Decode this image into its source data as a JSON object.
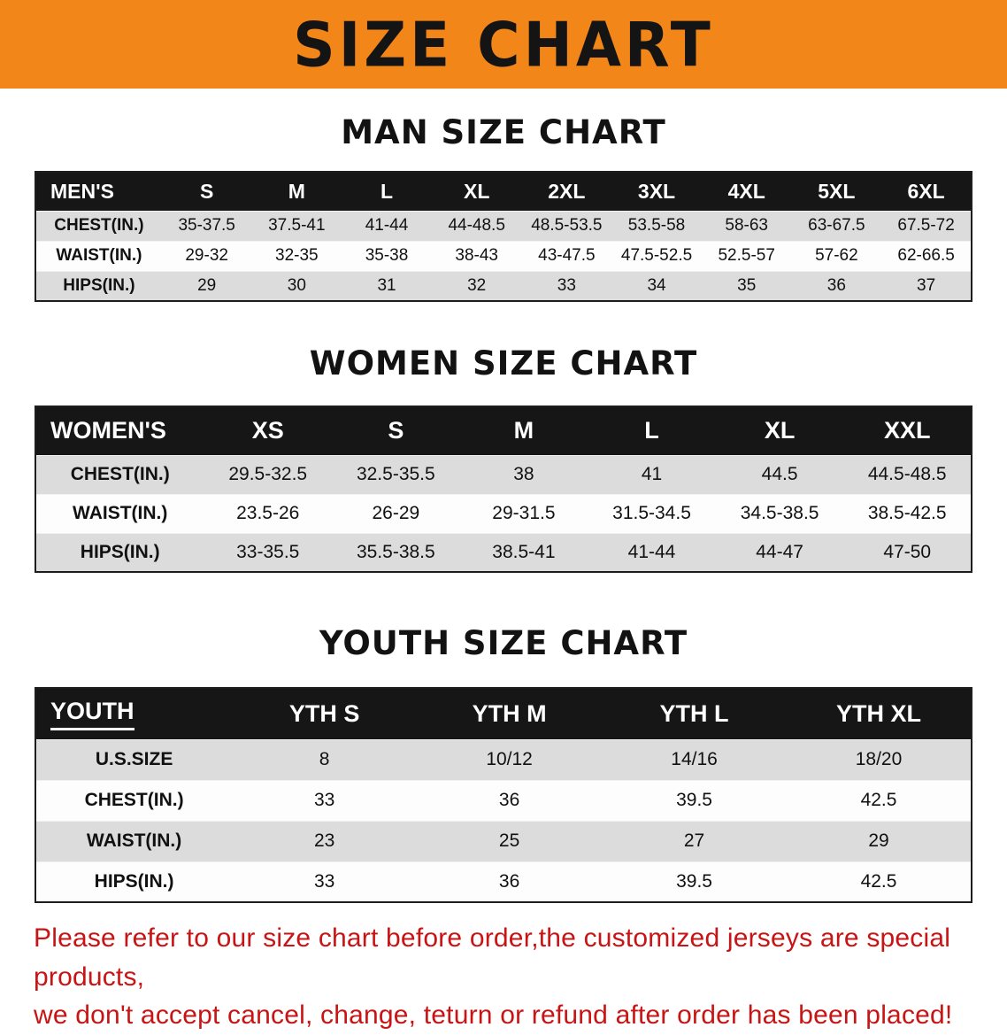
{
  "banner": {
    "title": "SIZE CHART"
  },
  "colors": {
    "banner_bg": "#f28618",
    "header_bg": "#161616",
    "row_stripe": "#dcdcdc",
    "note_red": "#c81414"
  },
  "chart_data": [
    {
      "type": "table",
      "id": "men",
      "title": "MAN SIZE CHART",
      "columns": [
        "MEN'S",
        "S",
        "M",
        "L",
        "XL",
        "2XL",
        "3XL",
        "4XL",
        "5XL",
        "6XL"
      ],
      "rows": [
        [
          "CHEST(IN.)",
          "35-37.5",
          "37.5-41",
          "41-44",
          "44-48.5",
          "48.5-53.5",
          "53.5-58",
          "58-63",
          "63-67.5",
          "67.5-72"
        ],
        [
          "WAIST(IN.)",
          "29-32",
          "32-35",
          "35-38",
          "38-43",
          "43-47.5",
          "47.5-52.5",
          "52.5-57",
          "57-62",
          "62-66.5"
        ],
        [
          "HIPS(IN.)",
          "29",
          "30",
          "31",
          "32",
          "33",
          "34",
          "35",
          "36",
          "37"
        ]
      ]
    },
    {
      "type": "table",
      "id": "women",
      "title": "WOMEN SIZE CHART",
      "columns": [
        "WOMEN'S",
        "XS",
        "S",
        "M",
        "L",
        "XL",
        "XXL"
      ],
      "rows": [
        [
          "CHEST(IN.)",
          "29.5-32.5",
          "32.5-35.5",
          "38",
          "41",
          "44.5",
          "44.5-48.5"
        ],
        [
          "WAIST(IN.)",
          "23.5-26",
          "26-29",
          "29-31.5",
          "31.5-34.5",
          "34.5-38.5",
          "38.5-42.5"
        ],
        [
          "HIPS(IN.)",
          "33-35.5",
          "35.5-38.5",
          "38.5-41",
          "41-44",
          "44-47",
          "47-50"
        ]
      ]
    },
    {
      "type": "table",
      "id": "youth",
      "title": "YOUTH SIZE CHART",
      "columns": [
        "YOUTH",
        "YTH S",
        "YTH M",
        "YTH L",
        "YTH XL"
      ],
      "rows": [
        [
          "U.S.SIZE",
          "8",
          "10/12",
          "14/16",
          "18/20"
        ],
        [
          "CHEST(IN.)",
          "33",
          "36",
          "39.5",
          "42.5"
        ],
        [
          "WAIST(IN.)",
          "23",
          "25",
          "27",
          "29"
        ],
        [
          "HIPS(IN.)",
          "33",
          "36",
          "39.5",
          "42.5"
        ]
      ]
    }
  ],
  "footer_note": {
    "lines": [
      "Please refer to our size chart before order,the customized jerseys are special products,",
      "we don't accept cancel, change, teturn or refund after order has been placed!"
    ]
  }
}
